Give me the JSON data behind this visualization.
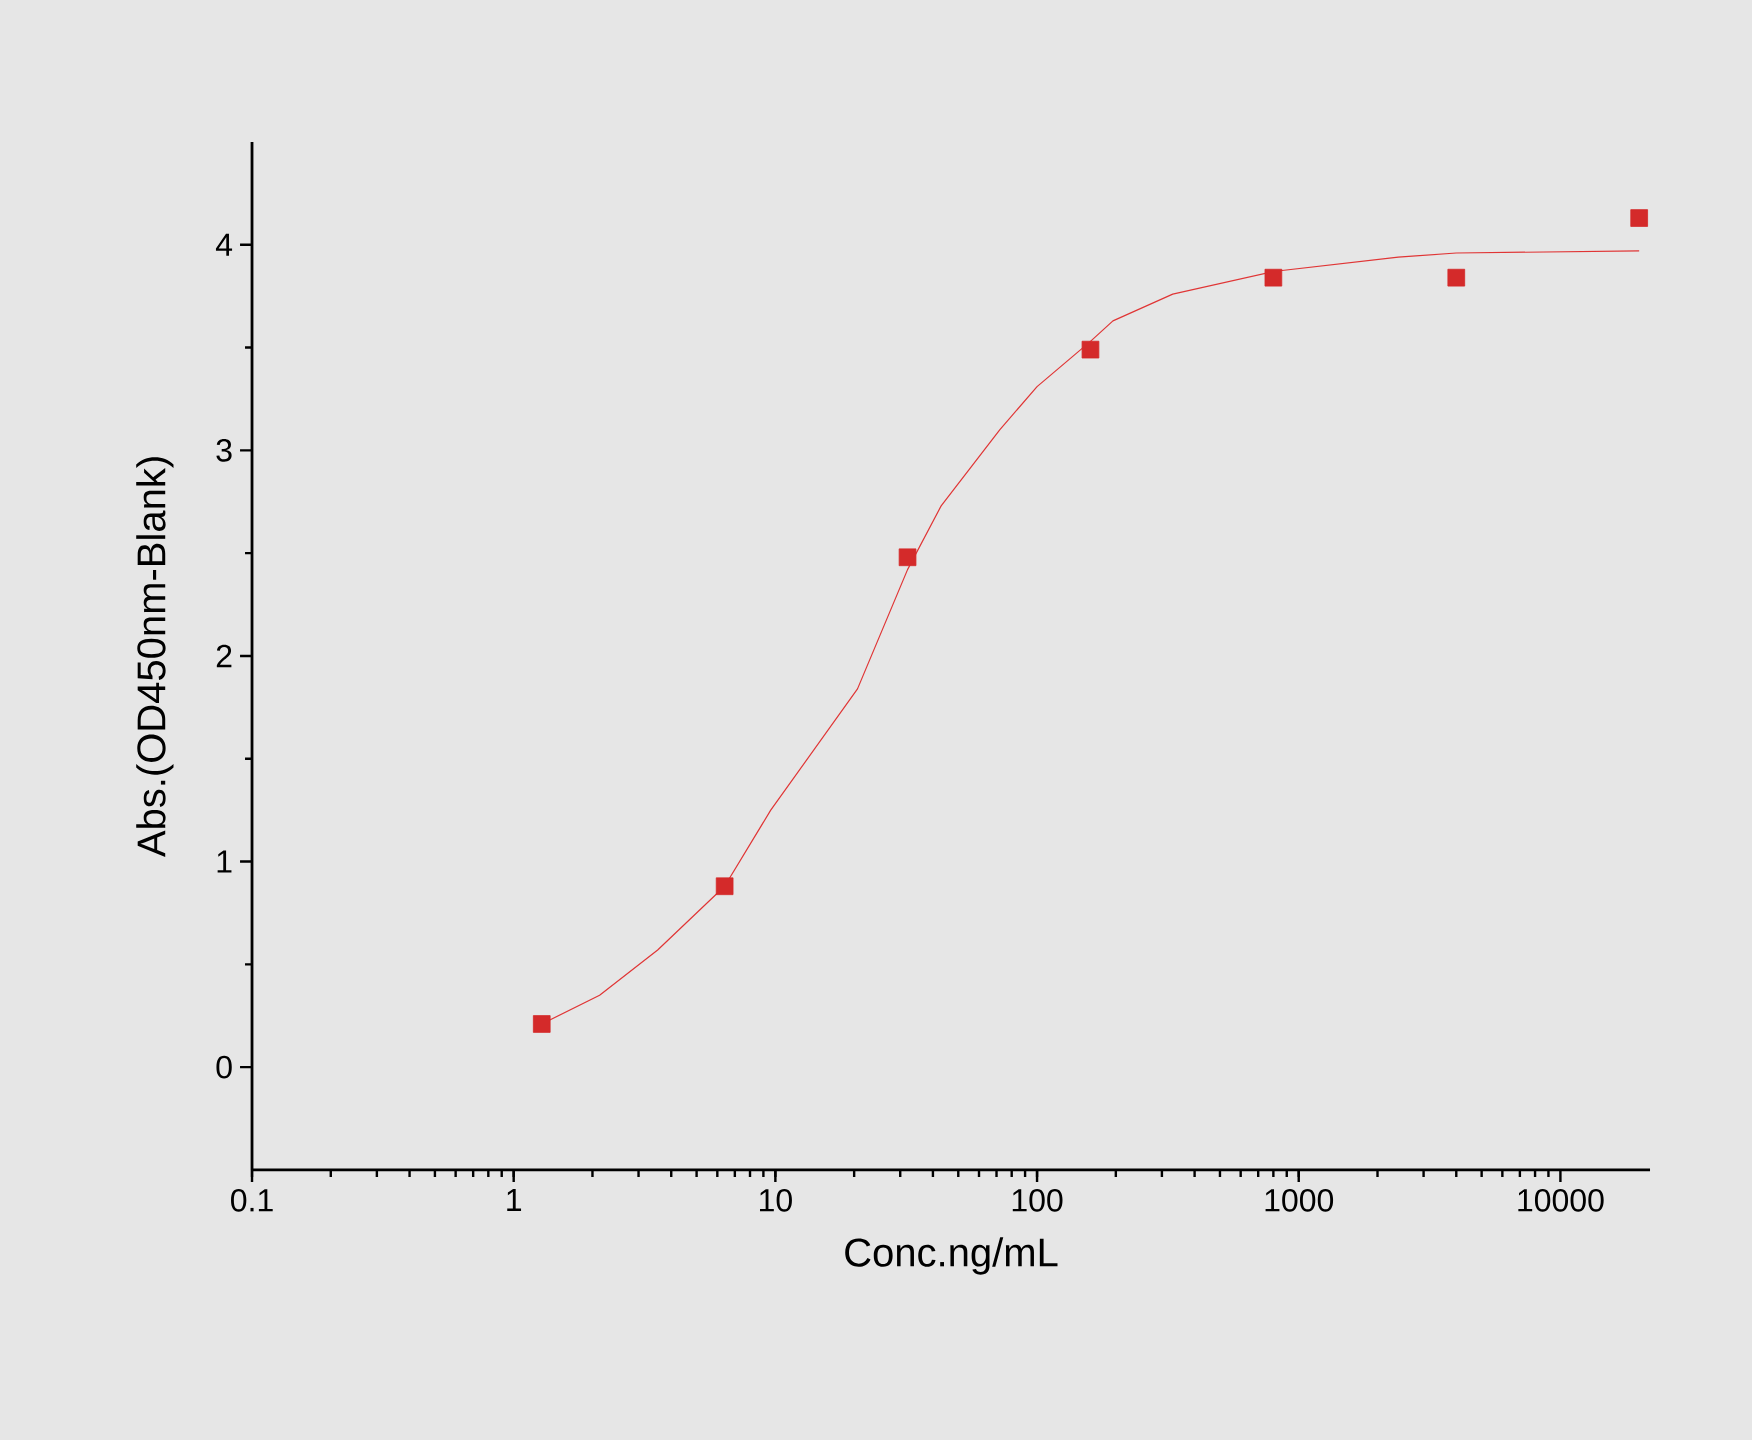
{
  "chart_data": {
    "type": "scatter",
    "xlabel": "Conc.ng/mL",
    "ylabel": "Abs.(OD450nm-Blank)",
    "log": "x",
    "xlim": [
      0.1,
      22000
    ],
    "ylim": [
      -0.5,
      4.5
    ],
    "xticks": [
      0.1,
      1,
      10,
      100,
      1000,
      10000
    ],
    "yticks": [
      0,
      1,
      2,
      3,
      4
    ],
    "grid": false,
    "series": [
      {
        "marker": "square",
        "color": "#d42a2a",
        "x": [
          1.28,
          6.4,
          32,
          160,
          800,
          4000,
          20000
        ],
        "values": [
          0.21,
          0.88,
          2.48,
          3.49,
          3.84,
          3.84,
          4.13
        ]
      },
      {
        "type": "line",
        "marker": "none",
        "color": "#e03535",
        "x": [
          1.28,
          2.13,
          3.55,
          6.4,
          9.6,
          20.6,
          32,
          43,
          72,
          100,
          160,
          195,
          330,
          800,
          2400,
          4000,
          20000
        ],
        "values": [
          0.21,
          0.35,
          0.57,
          0.88,
          1.25,
          1.84,
          2.42,
          2.73,
          3.1,
          3.31,
          3.53,
          3.63,
          3.76,
          3.87,
          3.94,
          3.96,
          3.97
        ]
      }
    ]
  }
}
